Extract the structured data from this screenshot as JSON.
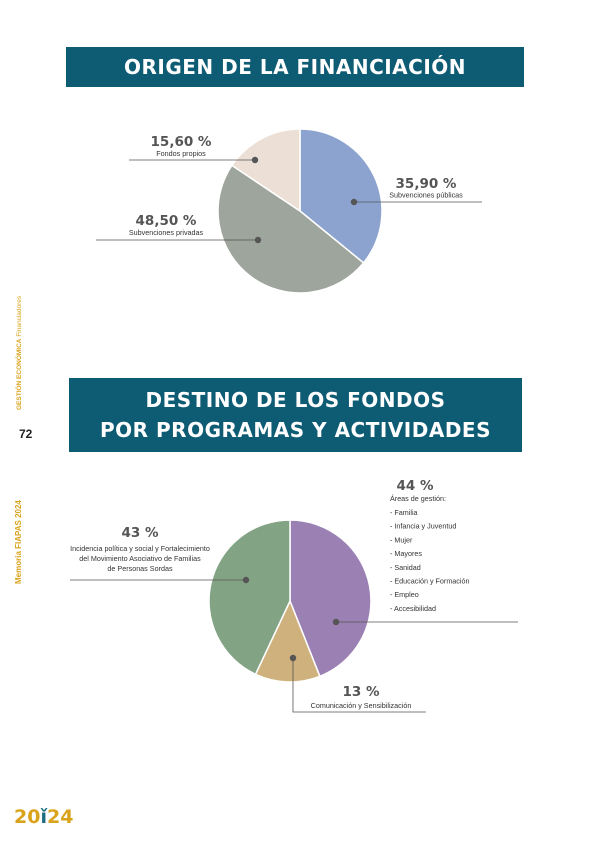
{
  "header": {
    "title1": "ORIGEN DE LA FINANCIACIÓN",
    "title2_line1": "DESTINO DE LOS FONDOS",
    "title2_line2": "POR PROGRAMAS Y ACTIVIDADES"
  },
  "sidebar": {
    "memoria": "Memoria FIAPAS 2024",
    "section": "GESTIÓN ECONÓMICA",
    "subsection": "Financiadores",
    "page_number": "72"
  },
  "logo": {
    "left": "20",
    "right": "24"
  },
  "chart_data": [
    {
      "type": "pie",
      "title": "ORIGEN DE LA FINANCIACIÓN",
      "slices": [
        {
          "label": "Subvenciones públicas",
          "percent_label": "35,90 %",
          "value": 35.9,
          "color": "#8ca3d0"
        },
        {
          "label": "Subvenciones privadas",
          "percent_label": "48,50 %",
          "value": 48.5,
          "color": "#9ea59c"
        },
        {
          "label": "Fondos propios",
          "percent_label": "15,60 %",
          "value": 15.6,
          "color": "#ece0d6"
        }
      ]
    },
    {
      "type": "pie",
      "title": "DESTINO DE LOS FONDOS POR PROGRAMAS Y ACTIVIDADES",
      "slices": [
        {
          "label": "Áreas de gestión:",
          "percent_label": "44 %",
          "value": 44,
          "color": "#9b80b4",
          "items": [
            "- Familia",
            "- Infancia y Juventud",
            "- Mujer",
            "- Mayores",
            "- Sanidad",
            "- Educación y Formación",
            "- Empleo",
            "- Accesibilidad"
          ]
        },
        {
          "label": "Comunicación y Sensibilización",
          "percent_label": "13 %",
          "value": 13,
          "color": "#cfb17e"
        },
        {
          "label_lines": [
            "Incidencia política y social y Fortalecimiento",
            "del Movimiento Asociativo de Familias",
            "de Personas Sordas"
          ],
          "percent_label": "43 %",
          "value": 43,
          "color": "#83a484"
        }
      ]
    }
  ]
}
